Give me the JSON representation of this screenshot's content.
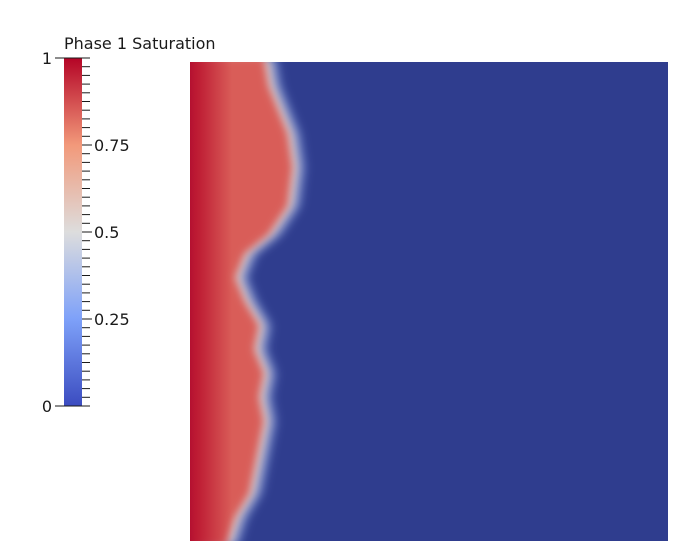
{
  "chart_data": {
    "type": "heatmap",
    "title": "Phase 1 Saturation",
    "colorbar": {
      "min": 0,
      "max": 1,
      "ticks": [
        {
          "value": 0,
          "label": "0"
        },
        {
          "value": 0.25,
          "label": "0.25"
        },
        {
          "value": 0.5,
          "label": "0.5"
        },
        {
          "value": 0.75,
          "label": "0.75"
        },
        {
          "value": 1,
          "label": "1"
        }
      ],
      "colormap": "Cool to Warm",
      "colormap_stops": [
        {
          "t": 0,
          "color": "#3b4cc0"
        },
        {
          "t": 0.25,
          "color": "#7ea1f9"
        },
        {
          "t": 0.5,
          "color": "#dddddd"
        },
        {
          "t": 0.75,
          "color": "#f2997a"
        },
        {
          "t": 1,
          "color": "#b40426"
        }
      ]
    },
    "field": {
      "description_values": {
        "left_edge_saturation": 0.95,
        "plateau_saturation": 0.85,
        "background_saturation": 0.02
      },
      "front_profile": [
        {
          "depth": 0.0,
          "front": 0.16
        },
        {
          "depth": 0.05,
          "front": 0.17
        },
        {
          "depth": 0.1,
          "front": 0.19
        },
        {
          "depth": 0.15,
          "front": 0.21
        },
        {
          "depth": 0.22,
          "front": 0.22
        },
        {
          "depth": 0.3,
          "front": 0.21
        },
        {
          "depth": 0.36,
          "front": 0.17
        },
        {
          "depth": 0.4,
          "front": 0.12
        },
        {
          "depth": 0.45,
          "front": 0.1
        },
        {
          "depth": 0.5,
          "front": 0.12
        },
        {
          "depth": 0.55,
          "front": 0.15
        },
        {
          "depth": 0.6,
          "front": 0.14
        },
        {
          "depth": 0.65,
          "front": 0.16
        },
        {
          "depth": 0.7,
          "front": 0.15
        },
        {
          "depth": 0.75,
          "front": 0.16
        },
        {
          "depth": 0.8,
          "front": 0.15
        },
        {
          "depth": 0.85,
          "front": 0.14
        },
        {
          "depth": 0.9,
          "front": 0.13
        },
        {
          "depth": 0.95,
          "front": 0.1
        },
        {
          "depth": 1.0,
          "front": 0.08
        }
      ]
    }
  }
}
